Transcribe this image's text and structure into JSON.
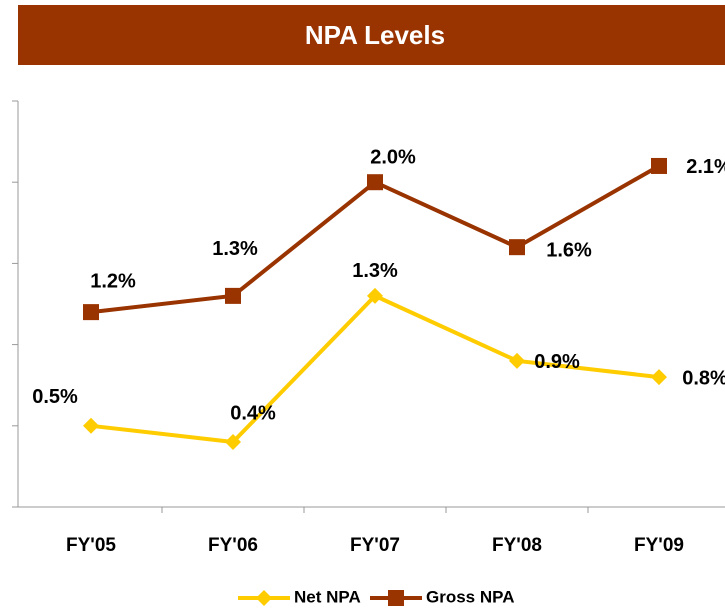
{
  "chart_data": {
    "type": "line",
    "title": "NPA Levels",
    "categories": [
      "FY'05",
      "FY'06",
      "FY'07",
      "FY'08",
      "FY'09"
    ],
    "series": [
      {
        "name": "Net NPA",
        "color": "#ffcc00",
        "marker": "diamond",
        "values": [
          0.5,
          0.4,
          1.3,
          0.9,
          0.8
        ],
        "value_labels": [
          "0.5%",
          "0.4%",
          "1.3%",
          "0.9%",
          "0.8%"
        ]
      },
      {
        "name": "Gross NPA",
        "color": "#993300",
        "marker": "square",
        "values": [
          1.2,
          1.3,
          2.0,
          1.6,
          2.1
        ],
        "value_labels": [
          "1.2%",
          "1.3%",
          "2.0%",
          "1.6%",
          "2.1%"
        ]
      }
    ],
    "ylim": [
      0,
      2.5
    ],
    "yticks": [
      0,
      0.5,
      1,
      1.5,
      2,
      2.5
    ],
    "legend": "bottom"
  }
}
